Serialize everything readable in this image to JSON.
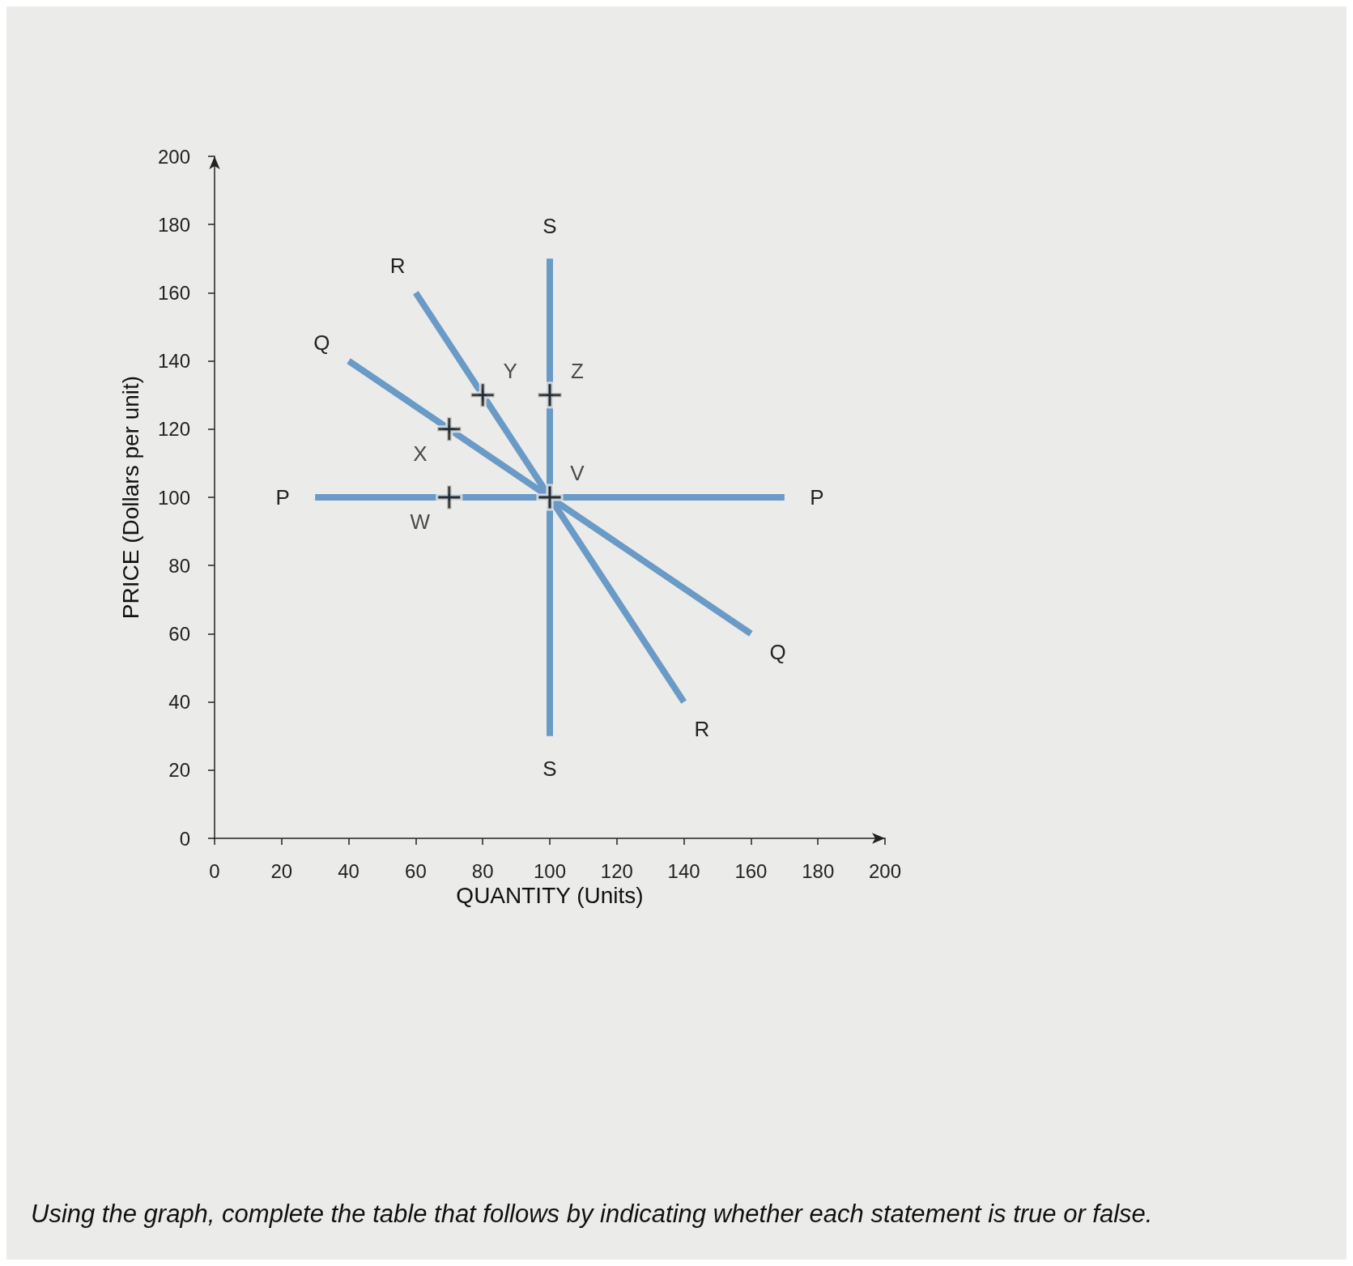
{
  "chart_data": {
    "type": "line",
    "xlabel": "QUANTITY (Units)",
    "ylabel": "PRICE (Dollars per unit)",
    "xlim": [
      0,
      200
    ],
    "xticks": [
      0,
      20,
      40,
      60,
      80,
      100,
      120,
      140,
      160,
      180,
      200
    ],
    "ylim": [
      0,
      200
    ],
    "yticks": [
      0,
      20,
      40,
      60,
      80,
      100,
      120,
      140,
      160,
      180,
      200
    ],
    "grid": false,
    "legend": false,
    "marker": "none",
    "line_style": "solid",
    "series": [
      {
        "name": "P",
        "color": "#6a9ac6",
        "x": [
          30,
          170
        ],
        "values": [
          100,
          100
        ]
      },
      {
        "name": "Q",
        "color": "#6a9ac6",
        "x": [
          40,
          160
        ],
        "values": [
          140,
          60
        ]
      },
      {
        "name": "R",
        "color": "#6a9ac6",
        "x": [
          60,
          140
        ],
        "values": [
          160,
          40
        ]
      },
      {
        "name": "S",
        "color": "#6a9ac6",
        "x": [
          100,
          100
        ],
        "values": [
          170,
          30
        ]
      },
      {
        "type": "scatter",
        "marker": "cross",
        "color": "#111111",
        "x": [
          70,
          70,
          80,
          100,
          100
        ],
        "values": [
          100,
          120,
          130,
          130,
          100
        ]
      }
    ],
    "annotations": [
      {
        "text": "W",
        "x": 70,
        "y": 100
      },
      {
        "text": "X",
        "x": 70,
        "y": 120
      },
      {
        "text": "Y",
        "x": 80,
        "y": 130
      },
      {
        "text": "Z",
        "x": 100,
        "y": 130
      },
      {
        "text": "V",
        "x": 100,
        "y": 100
      },
      "Using the graph, complete the table that follows by indicating whether each statement is true or false."
    ]
  }
}
